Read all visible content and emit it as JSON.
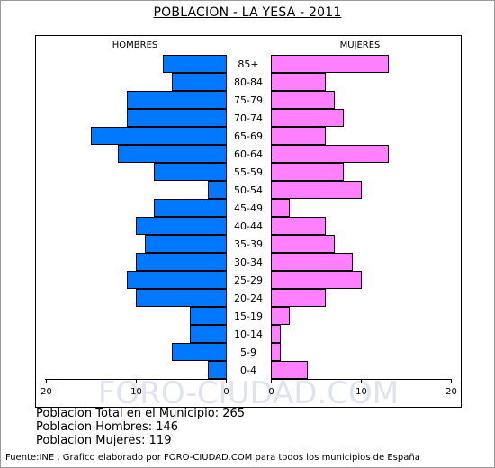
{
  "title": "POBLACION - LA YESA - 2011",
  "summary": {
    "total": "Poblacion Total en el Municipio: 265",
    "hombres": "Poblacion Hombres: 146",
    "mujeres": "Poblacion Mujeres: 119"
  },
  "footer": "Fuente:INE , Grafico elaborado por FORO-CIUDAD.COM para todos los municipios de España",
  "watermark": "FORO-CIUDAD.COM",
  "colors": {
    "male": "#0078FF",
    "female": "#FF80FF",
    "outline": "#000000"
  },
  "chart_data": {
    "type": "bar",
    "orientation": "horizontal-population-pyramid",
    "title": "POBLACION - LA YESA - 2011",
    "left_label": "HOMBRES",
    "right_label": "MUJERES",
    "xlim": [
      0,
      20
    ],
    "x_ticks": [
      "20",
      "10",
      "0",
      "0",
      "10",
      "20"
    ],
    "categories": [
      "85+",
      "80-84",
      "75-79",
      "70-74",
      "65-69",
      "60-64",
      "55-59",
      "50-54",
      "45-49",
      "40-44",
      "35-39",
      "30-34",
      "25-29",
      "20-24",
      "15-19",
      "10-14",
      "5-9",
      "0-4"
    ],
    "series": [
      {
        "name": "HOMBRES",
        "values": [
          7,
          6,
          11,
          11,
          15,
          12,
          8,
          2,
          8,
          10,
          9,
          10,
          11,
          10,
          4,
          4,
          6,
          2
        ]
      },
      {
        "name": "MUJERES",
        "values": [
          13,
          6,
          7,
          8,
          6,
          13,
          8,
          10,
          2,
          6,
          7,
          9,
          10,
          6,
          2,
          1,
          1,
          4
        ]
      }
    ]
  }
}
